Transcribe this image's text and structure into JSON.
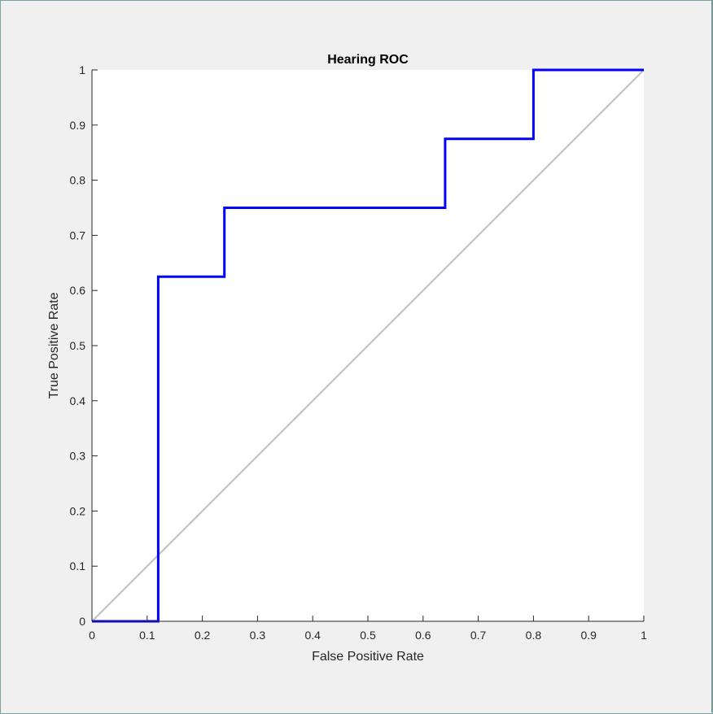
{
  "chart_data": {
    "type": "line",
    "title": "Hearing ROC",
    "xlabel": "False Positive Rate",
    "ylabel": "True Positive Rate",
    "xlim": [
      0,
      1
    ],
    "ylim": [
      0,
      1
    ],
    "grid": false,
    "xticks": [
      "0",
      "0.1",
      "0.2",
      "0.3",
      "0.4",
      "0.5",
      "0.6",
      "0.7",
      "0.8",
      "0.9",
      "1"
    ],
    "yticks": [
      "0",
      "0.1",
      "0.2",
      "0.3",
      "0.4",
      "0.5",
      "0.6",
      "0.7",
      "0.8",
      "0.9",
      "1"
    ],
    "series": [
      {
        "color": "#0000ff",
        "x": [
          0,
          0.12,
          0.12,
          0.24,
          0.24,
          0.64,
          0.64,
          0.8,
          0.8,
          1.0
        ],
        "y": [
          0,
          0,
          0.625,
          0.625,
          0.75,
          0.75,
          0.875,
          0.875,
          1.0,
          1.0
        ]
      },
      {
        "color": "#c8c8c8",
        "x": [
          0,
          1
        ],
        "y": [
          0,
          1
        ]
      }
    ]
  }
}
